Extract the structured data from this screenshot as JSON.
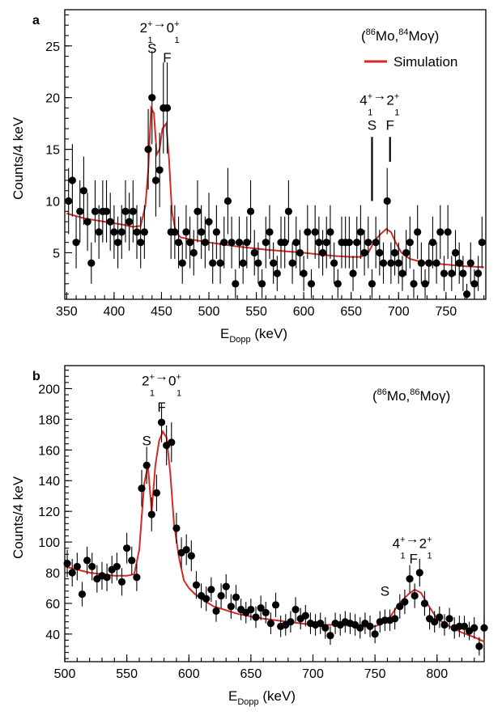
{
  "chart_data": [
    {
      "panel_label": "a",
      "type": "scatter",
      "reaction": {
        "pre": "(",
        "s1": "86",
        "m1": "Mo,",
        "s2": "84",
        "m2": "Mo",
        "g": "γ",
        "post": ")"
      },
      "legend": [
        {
          "name": "Simulation",
          "color": "#d42a25"
        }
      ],
      "xlabel": {
        "main": "E",
        "sub": "Dopp",
        "unit": " (keV)"
      },
      "ylabel": "Counts/4 keV",
      "xlim": [
        348,
        792
      ],
      "ylim": [
        0.5,
        28.5
      ],
      "xticks": [
        350,
        400,
        450,
        500,
        550,
        600,
        650,
        700,
        750
      ],
      "yticks": [
        5,
        10,
        15,
        20,
        25
      ],
      "annotations": [
        {
          "kind": "transition",
          "a": "2",
          "asub": "1",
          "asup": "+",
          "arrow": "→",
          "b": "0",
          "bsub": "1",
          "bsup": "+",
          "x": 448,
          "y": 26.3
        },
        {
          "kind": "label",
          "text": "S",
          "x": 440,
          "y": 24.3
        },
        {
          "kind": "label",
          "text": "F",
          "x": 456,
          "y": 23.4
        },
        {
          "kind": "transition",
          "a": "4",
          "asub": "1",
          "asup": "+",
          "arrow": "→",
          "b": "2",
          "bsub": "1",
          "bsup": "+",
          "x": 680,
          "y": 19.3
        },
        {
          "kind": "label",
          "text": "S",
          "x": 672,
          "y": 16.9
        },
        {
          "kind": "label",
          "text": "F",
          "x": 691,
          "y": 16.9
        },
        {
          "kind": "line",
          "x": 672,
          "y1": 16.2,
          "y2": 10.0
        },
        {
          "kind": "line",
          "x": 691,
          "y1": 16.2,
          "y2": 13.8
        }
      ],
      "points": {
        "x": [
          352,
          356,
          360,
          364,
          368,
          372,
          376,
          380,
          384,
          388,
          392,
          396,
          400,
          404,
          408,
          412,
          416,
          420,
          424,
          428,
          432,
          436,
          440,
          444,
          448,
          452,
          456,
          460,
          464,
          468,
          472,
          476,
          480,
          484,
          488,
          492,
          496,
          500,
          504,
          508,
          512,
          516,
          520,
          524,
          528,
          532,
          536,
          540,
          544,
          548,
          552,
          556,
          560,
          564,
          568,
          572,
          576,
          580,
          584,
          588,
          592,
          596,
          600,
          604,
          608,
          612,
          616,
          620,
          624,
          628,
          632,
          636,
          640,
          644,
          648,
          652,
          656,
          660,
          664,
          668,
          672,
          676,
          680,
          684,
          688,
          692,
          696,
          700,
          704,
          708,
          712,
          716,
          720,
          724,
          728,
          732,
          736,
          740,
          744,
          748,
          752,
          756,
          760,
          764,
          768,
          772,
          776,
          780,
          784,
          788
        ],
        "y": [
          10,
          12,
          6,
          9,
          11,
          8,
          4,
          9,
          7,
          9,
          9,
          8,
          7,
          6,
          7,
          9,
          8,
          9,
          7,
          6,
          7,
          15,
          20,
          12,
          13,
          19,
          19,
          7,
          7,
          6,
          4,
          7,
          6,
          5,
          9,
          7,
          6,
          8,
          4,
          7,
          4,
          6,
          10,
          6,
          2,
          6,
          4,
          6,
          9,
          5,
          4,
          2,
          6,
          7,
          4,
          3,
          6,
          6,
          9,
          4,
          6,
          5,
          3,
          7,
          2,
          7,
          6,
          5,
          6,
          7,
          4,
          2,
          6,
          6,
          6,
          3,
          6,
          7,
          5,
          6,
          2,
          6,
          5,
          4,
          10,
          4,
          5,
          4,
          3,
          5,
          6,
          2,
          7,
          4,
          2,
          4,
          6,
          4,
          7,
          3,
          7,
          3,
          5,
          4,
          3,
          1,
          4,
          2,
          3,
          6
        ],
        "err": [
          3.2,
          3.5,
          2.5,
          3,
          3.3,
          2.8,
          2,
          3,
          2.6,
          3,
          3,
          2.8,
          2.6,
          2.5,
          2.6,
          3,
          2.8,
          3,
          2.6,
          2.5,
          2.6,
          3.9,
          4.5,
          3.5,
          3.6,
          4.4,
          4.4,
          2.6,
          2.6,
          2.5,
          2,
          2.6,
          2.5,
          2.2,
          3,
          2.6,
          2.5,
          2.8,
          2,
          2.6,
          2,
          2.5,
          3.2,
          2.5,
          1.4,
          2.5,
          2,
          2.5,
          3,
          2.2,
          2,
          1.4,
          2.5,
          2.6,
          2,
          1.7,
          2.5,
          2.5,
          3,
          2,
          2.5,
          2.2,
          1.7,
          2.6,
          1.4,
          2.6,
          2.5,
          2.2,
          2.5,
          2.6,
          2,
          1.4,
          2.5,
          2.5,
          2.5,
          1.7,
          2.5,
          2.6,
          2.2,
          2.5,
          1.4,
          2.5,
          2.2,
          2,
          3.2,
          2,
          2.2,
          2,
          1.7,
          2.2,
          2.5,
          1.4,
          2.6,
          2,
          1.4,
          2,
          2.5,
          2,
          2.6,
          1.7,
          2.6,
          1.7,
          2.2,
          2,
          1.7,
          1,
          2,
          1.4,
          1.7,
          2.5
        ]
      },
      "series": [
        {
          "name": "Simulation",
          "x": [
            350,
            370,
            390,
            410,
            420,
            428,
            433,
            436,
            439,
            442,
            445,
            448,
            451,
            455,
            458,
            461,
            465,
            470,
            480,
            500,
            530,
            560,
            600,
            630,
            650,
            660,
            668,
            675,
            681,
            687,
            692,
            697,
            703,
            712,
            725,
            745,
            770,
            790
          ],
          "y": [
            8.8,
            8.3,
            8.0,
            7.7,
            7.5,
            7.6,
            9.5,
            13,
            19,
            18.5,
            14.5,
            15.0,
            17.0,
            17.5,
            14,
            9,
            7.0,
            6.5,
            6.3,
            6.0,
            5.6,
            5.3,
            5.0,
            4.7,
            4.6,
            4.6,
            5.0,
            6.2,
            6.8,
            7.3,
            7.0,
            6.0,
            5.0,
            4.4,
            4.1,
            3.9,
            3.7,
            3.6
          ]
        }
      ]
    },
    {
      "panel_label": "b",
      "type": "scatter",
      "reaction": {
        "pre": "(",
        "s1": "86",
        "m1": "Mo,",
        "s2": "86",
        "m2": "Mo",
        "g": "γ",
        "post": ")"
      },
      "xlabel": {
        "main": "E",
        "sub": "Dopp",
        "unit": " (keV)"
      },
      "ylabel": "Counts/4 keV",
      "xlim": [
        500,
        838
      ],
      "ylim": [
        22,
        215
      ],
      "xticks": [
        500,
        550,
        600,
        650,
        700,
        750,
        800
      ],
      "yticks": [
        40,
        60,
        80,
        100,
        120,
        140,
        160,
        180,
        200
      ],
      "annotations": [
        {
          "kind": "transition",
          "a": "2",
          "asub": "1",
          "asup": "+",
          "arrow": "→",
          "b": "0",
          "bsub": "1",
          "bsup": "+",
          "x": 578,
          "y": 202
        },
        {
          "kind": "label",
          "text": "S",
          "x": 566,
          "y": 163
        },
        {
          "kind": "label",
          "text": "F",
          "x": 578,
          "y": 185
        },
        {
          "kind": "transition",
          "a": "4",
          "asub": "1",
          "asup": "+",
          "arrow": "→",
          "b": "2",
          "bsub": "1",
          "bsup": "+",
          "x": 780,
          "y": 96
        },
        {
          "kind": "label",
          "text": "S",
          "x": 758,
          "y": 65
        },
        {
          "kind": "label",
          "text": "F",
          "x": 781,
          "y": 86
        }
      ],
      "points": {
        "x": [
          502,
          506,
          510,
          514,
          518,
          522,
          526,
          530,
          534,
          538,
          542,
          546,
          550,
          554,
          558,
          562,
          566,
          570,
          574,
          578,
          582,
          586,
          590,
          594,
          598,
          602,
          606,
          610,
          614,
          618,
          622,
          626,
          630,
          634,
          638,
          642,
          646,
          650,
          654,
          658,
          662,
          666,
          670,
          674,
          678,
          682,
          686,
          690,
          694,
          698,
          702,
          706,
          710,
          714,
          718,
          722,
          726,
          730,
          734,
          738,
          742,
          746,
          750,
          754,
          758,
          762,
          766,
          770,
          774,
          778,
          782,
          786,
          790,
          794,
          798,
          802,
          806,
          810,
          814,
          818,
          822,
          826,
          830,
          834,
          838
        ],
        "y": [
          86,
          80,
          84,
          66,
          88,
          84,
          76,
          78,
          77,
          82,
          84,
          74,
          96,
          88,
          77,
          135,
          150,
          118,
          132,
          178,
          163,
          165,
          109,
          93,
          95,
          91,
          72,
          65,
          63,
          69,
          55,
          65,
          71,
          58,
          64,
          56,
          54,
          56,
          51,
          57,
          54,
          47,
          59,
          45,
          46,
          48,
          56,
          50,
          52,
          47,
          46,
          47,
          44,
          39,
          47,
          46,
          48,
          47,
          46,
          44,
          47,
          45,
          40,
          48,
          49,
          49,
          50,
          58,
          61,
          76,
          65,
          80,
          60,
          50,
          48,
          51,
          46,
          50,
          44,
          45,
          45,
          42,
          44,
          32,
          44
        ],
        "err": [
          9,
          9,
          9,
          8,
          9,
          9,
          9,
          9,
          9,
          9,
          9,
          9,
          10,
          9,
          9,
          12,
          12,
          11,
          12,
          13,
          13,
          13,
          10,
          10,
          10,
          10,
          9,
          8,
          8,
          8,
          7,
          8,
          8,
          8,
          8,
          7,
          7,
          7,
          7,
          8,
          7,
          7,
          8,
          7,
          7,
          7,
          8,
          7,
          7,
          7,
          7,
          7,
          7,
          6,
          7,
          7,
          7,
          7,
          7,
          7,
          7,
          7,
          6,
          7,
          7,
          7,
          7,
          8,
          8,
          9,
          8,
          9,
          8,
          7,
          7,
          7,
          7,
          7,
          7,
          7,
          7,
          6,
          7,
          6,
          7
        ]
      },
      "series": [
        {
          "name": "Simulation",
          "x": [
            500,
            510,
            520,
            530,
            540,
            550,
            556,
            560,
            564,
            567,
            570,
            573,
            576,
            579,
            582,
            585,
            588,
            592,
            596,
            600,
            605,
            610,
            620,
            640,
            660,
            680,
            700,
            720,
            740,
            750,
            756,
            762,
            767,
            772,
            777,
            782,
            787,
            792,
            800,
            810,
            820,
            830,
            838
          ],
          "y": [
            84,
            82,
            80,
            79,
            78,
            78,
            79,
            95,
            138,
            150,
            120,
            150,
            166,
            172,
            168,
            145,
            112,
            90,
            75,
            70,
            66,
            63,
            58,
            53,
            50,
            48,
            46,
            46,
            45,
            45,
            47,
            51,
            57,
            62,
            66,
            69,
            67,
            60,
            50,
            45,
            41,
            38,
            35
          ]
        }
      ]
    }
  ]
}
